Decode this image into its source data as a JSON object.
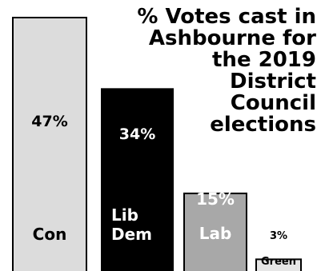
{
  "chart_data": {
    "type": "bar",
    "title": "% Votes cast in\nAshbourne for\nthe 2019\nDistrict\nCouncil\nelections",
    "xlabel": "",
    "ylabel": "",
    "ylim": [
      0,
      50
    ],
    "grid": false,
    "legend": "none",
    "categories": [
      "Con",
      "Lib\nDem",
      "Lab",
      "Green"
    ],
    "values": [
      47,
      34,
      15,
      3
    ],
    "value_labels": [
      "47%",
      "34%",
      "15%",
      "3%"
    ],
    "colors": [
      "#dcdcdc",
      "#000000",
      "#a8a8a8",
      "#e6e6e6"
    ],
    "text_colors": [
      "#000000",
      "#ffffff",
      "#ffffff",
      "#000000"
    ]
  }
}
